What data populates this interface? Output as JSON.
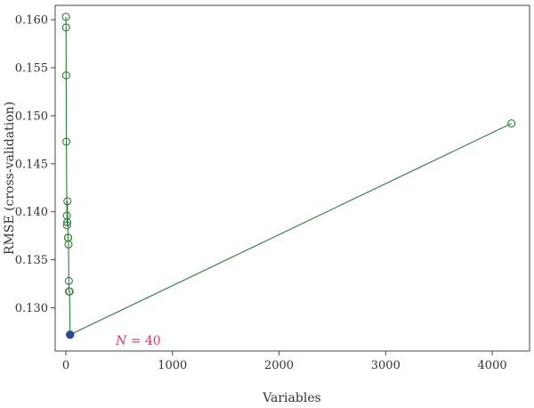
{
  "chart_data": {
    "type": "line",
    "title": "",
    "xlabel": "Variables",
    "ylabel": "RMSE (cross-validation)",
    "xlim": [
      -100,
      4350
    ],
    "ylim": [
      0.1255,
      0.1615
    ],
    "x_ticks": [
      0,
      1000,
      2000,
      3000,
      4000
    ],
    "x_tick_labels": [
      "0",
      "1000",
      "2000",
      "3000",
      "4000"
    ],
    "y_ticks": [
      0.13,
      0.135,
      0.14,
      0.145,
      0.15,
      0.155,
      0.16
    ],
    "y_tick_labels": [
      "0.130",
      "0.135",
      "0.140",
      "0.145",
      "0.150",
      "0.155",
      "0.160"
    ],
    "grid": false,
    "series": [
      {
        "color": "#2e7d3a",
        "points": [
          {
            "x": 1,
            "y": 0.1603
          },
          {
            "x": 2,
            "y": 0.1592
          },
          {
            "x": 3,
            "y": 0.1542
          },
          {
            "x": 5,
            "y": 0.1473
          },
          {
            "x": 10,
            "y": 0.1396
          },
          {
            "x": 11,
            "y": 0.1386
          },
          {
            "x": 13,
            "y": 0.1389
          },
          {
            "x": 15,
            "y": 0.1411
          },
          {
            "x": 20,
            "y": 0.1373
          },
          {
            "x": 22,
            "y": 0.1373
          },
          {
            "x": 25,
            "y": 0.1366
          },
          {
            "x": 28,
            "y": 0.1328
          },
          {
            "x": 30,
            "y": 0.1317
          },
          {
            "x": 35,
            "y": 0.1317
          },
          {
            "x": 40,
            "y": 0.1272
          },
          {
            "x": 4180,
            "y": 0.1492
          }
        ]
      }
    ],
    "highlight": {
      "x": 40,
      "y": 0.1272,
      "color": "#2a4a8c"
    },
    "annotation": {
      "prefix": "N",
      "text": " = 40",
      "color": "#d63a6a"
    }
  }
}
